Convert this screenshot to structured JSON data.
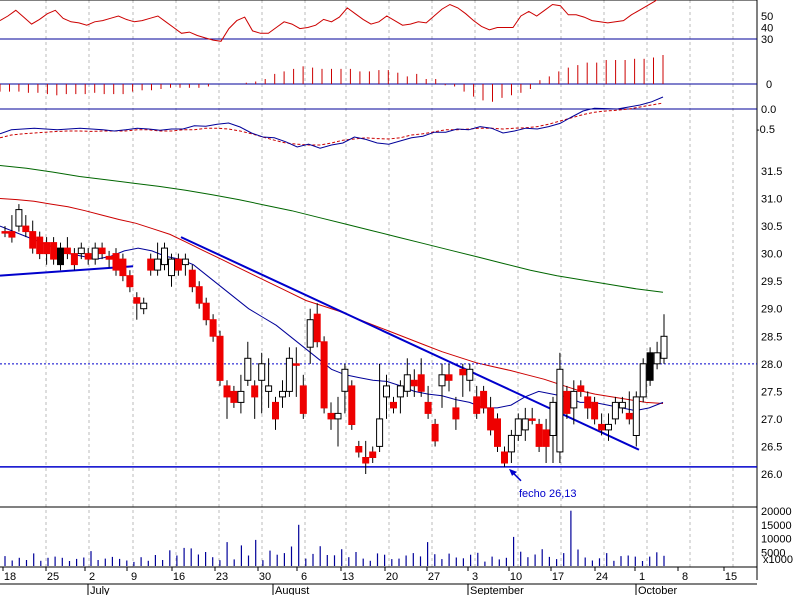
{
  "chart_data": [
    {
      "type": "line",
      "panel": "oscillator",
      "series": [
        {
          "values": [
            46,
            50,
            55,
            49,
            43,
            47,
            52,
            55,
            48,
            45,
            44,
            42,
            45,
            46,
            48,
            50,
            47,
            45,
            46,
            48,
            50,
            45,
            40,
            35,
            36,
            33,
            31,
            29,
            28,
            39,
            46,
            49,
            37,
            35,
            35,
            40,
            45,
            43,
            39,
            40,
            42,
            47,
            45,
            49,
            57,
            52,
            47,
            43,
            45,
            50,
            46,
            42,
            43,
            45,
            44,
            50,
            56,
            60,
            57,
            52,
            46,
            41,
            38,
            40,
            40,
            40,
            50,
            54,
            50,
            55,
            60,
            59,
            51,
            51,
            49,
            46,
            45,
            44,
            45,
            46,
            51,
            55,
            59,
            63,
            69
          ]
        }
      ],
      "reference_lines": [
        30
      ],
      "ytick_labels": [
        "50",
        "40",
        "30"
      ],
      "colors": {
        "line": "#cc0000",
        "reference": "#000099"
      }
    },
    {
      "type": "bar",
      "panel": "histogram",
      "values": [
        -6,
        -6,
        -6,
        -7,
        -7,
        -8,
        -9,
        -8,
        -8,
        -8,
        -7,
        -8,
        -8,
        -8,
        -6,
        -5,
        -5,
        -4,
        -3,
        -3,
        -3,
        -3,
        -2,
        0,
        0,
        0,
        1,
        2,
        4,
        8,
        10,
        12,
        14,
        13,
        12,
        12,
        12,
        12,
        10,
        10,
        11,
        11,
        9,
        6,
        8,
        4,
        4,
        -1,
        -2,
        -6,
        -10,
        -13,
        -14,
        -11,
        -9,
        -7,
        -4,
        3,
        6,
        10,
        13,
        15,
        17,
        17,
        19,
        19,
        19,
        20,
        20,
        21,
        23
      ],
      "reference_lines": [
        0
      ],
      "ytick_labels": [
        "0"
      ],
      "colors": {
        "bar": "#cc0000",
        "reference": "#000099"
      }
    },
    {
      "type": "line",
      "panel": "macd",
      "series": [
        {
          "values": [
            -0.62,
            -0.52,
            -0.5,
            -0.48,
            -0.5,
            -0.52,
            -0.5,
            -0.48,
            -0.5,
            -0.52,
            -0.55,
            -0.52,
            -0.48,
            -0.5,
            -0.53,
            -0.5,
            -0.5,
            -0.42,
            -0.43,
            -0.38,
            -0.35,
            -0.45,
            -0.6,
            -0.7,
            -0.72,
            -0.82,
            -0.95,
            -0.88,
            -0.98,
            -0.9,
            -0.85,
            -0.7,
            -0.76,
            -0.85,
            -0.88,
            -0.8,
            -0.72,
            -0.68,
            -0.58,
            -0.58,
            -0.5,
            -0.52,
            -0.44,
            -0.48,
            -0.6,
            -0.55,
            -0.48,
            -0.5,
            -0.44,
            -0.36,
            -0.2,
            -0.05,
            0.02,
            0.01,
            0.0,
            0.05,
            0.1,
            0.18,
            0.3
          ]
        },
        {
          "values": [
            -0.72,
            -0.65,
            -0.62,
            -0.6,
            -0.58,
            -0.56,
            -0.55,
            -0.55,
            -0.56,
            -0.55,
            -0.55,
            -0.55,
            -0.52,
            -0.52,
            -0.55,
            -0.55,
            -0.52,
            -0.52,
            -0.48,
            -0.48,
            -0.5,
            -0.55,
            -0.62,
            -0.7,
            -0.78,
            -0.85,
            -0.88,
            -0.9,
            -0.9,
            -0.85,
            -0.78,
            -0.75,
            -0.72,
            -0.74,
            -0.75,
            -0.72,
            -0.65,
            -0.62,
            -0.57,
            -0.52,
            -0.52,
            -0.5,
            -0.48,
            -0.48,
            -0.5,
            -0.48,
            -0.47,
            -0.44,
            -0.38,
            -0.3,
            -0.22,
            -0.14,
            -0.08,
            -0.05,
            -0.03,
            0.0,
            0.05,
            0.1,
            0.15
          ]
        }
      ],
      "reference_lines": [
        0.0
      ],
      "ytick_labels": [
        "0.0",
        "-0.5"
      ],
      "colors": {
        "fast": "#000099",
        "slow": "#cc0000",
        "reference": "#000099"
      }
    },
    {
      "type": "candlestick",
      "panel": "price",
      "ylim": [
        25.75,
        31.75
      ],
      "ytick_labels": [
        "31.5",
        "31.0",
        "30.5",
        "30.0",
        "29.5",
        "29.0",
        "28.5",
        "28.0",
        "27.5",
        "27.0",
        "26.5",
        "26.0"
      ],
      "candles": [
        [
          30.4,
          30.5,
          30.3,
          30.4
        ],
        [
          30.4,
          30.7,
          30.2,
          30.3
        ],
        [
          30.5,
          30.9,
          30.4,
          30.8
        ],
        [
          30.5,
          30.7,
          30.3,
          30.4
        ],
        [
          30.4,
          30.6,
          30.0,
          30.1
        ],
        [
          30.3,
          30.4,
          29.9,
          30.0
        ],
        [
          30.2,
          30.3,
          29.8,
          30.0
        ],
        [
          30.2,
          30.3,
          29.8,
          29.9
        ],
        [
          29.8,
          30.2,
          29.7,
          30.1
        ],
        [
          30.1,
          30.3,
          29.9,
          30.0
        ],
        [
          30.0,
          30.1,
          29.7,
          29.8
        ],
        [
          30.0,
          30.2,
          29.9,
          30.1
        ],
        [
          30.0,
          30.1,
          29.8,
          29.9
        ],
        [
          29.9,
          30.2,
          29.8,
          30.1
        ],
        [
          30.1,
          30.2,
          29.9,
          30.0
        ],
        [
          29.95,
          30.05,
          29.75,
          29.9
        ],
        [
          30.0,
          30.1,
          29.6,
          29.7
        ],
        [
          29.9,
          30.0,
          29.5,
          29.6
        ],
        [
          29.6,
          29.7,
          29.3,
          29.4
        ],
        [
          29.2,
          29.3,
          28.8,
          29.1
        ],
        [
          29.0,
          29.2,
          28.9,
          29.1
        ],
        [
          29.9,
          30.0,
          29.6,
          29.7
        ],
        [
          29.7,
          30.2,
          29.6,
          29.9
        ],
        [
          29.8,
          30.2,
          29.7,
          30.1
        ],
        [
          29.6,
          30.0,
          29.4,
          29.9
        ],
        [
          29.9,
          30.0,
          29.6,
          29.7
        ],
        [
          29.8,
          30.0,
          29.6,
          29.9
        ],
        [
          29.7,
          29.8,
          29.3,
          29.4
        ],
        [
          29.4,
          29.5,
          29.0,
          29.1
        ],
        [
          29.1,
          29.2,
          28.7,
          28.8
        ],
        [
          28.8,
          28.9,
          28.4,
          28.5
        ],
        [
          28.5,
          28.6,
          27.6,
          27.7
        ],
        [
          27.6,
          27.7,
          27.0,
          27.4
        ],
        [
          27.5,
          27.6,
          27.2,
          27.3
        ],
        [
          27.3,
          27.8,
          27.1,
          27.5
        ],
        [
          27.7,
          28.4,
          27.6,
          28.1
        ],
        [
          27.6,
          27.7,
          27.0,
          27.4
        ],
        [
          27.7,
          28.2,
          27.1,
          28.0
        ],
        [
          27.5,
          28.1,
          27.2,
          27.6
        ],
        [
          27.3,
          27.4,
          26.8,
          27.0
        ],
        [
          27.4,
          27.7,
          27.2,
          27.5
        ],
        [
          27.5,
          28.3,
          27.4,
          28.1
        ],
        [
          28.0,
          28.3,
          27.4,
          28.0
        ],
        [
          27.6,
          27.8,
          27.0,
          27.1
        ],
        [
          28.3,
          29.0,
          28.0,
          28.8
        ],
        [
          28.9,
          29.1,
          28.3,
          28.4
        ],
        [
          28.4,
          28.5,
          27.1,
          27.2
        ],
        [
          27.1,
          27.3,
          26.8,
          27.0
        ],
        [
          27.0,
          27.4,
          26.5,
          27.1
        ],
        [
          27.5,
          28.0,
          27.1,
          27.9
        ],
        [
          27.6,
          27.7,
          26.8,
          26.9
        ],
        [
          26.5,
          26.6,
          26.3,
          26.4
        ],
        [
          26.3,
          26.6,
          26.0,
          26.2
        ],
        [
          26.4,
          26.5,
          26.2,
          26.3
        ],
        [
          26.5,
          28.0,
          26.4,
          27.0
        ],
        [
          27.4,
          27.8,
          27.0,
          27.6
        ],
        [
          27.3,
          27.4,
          27.1,
          27.2
        ],
        [
          27.4,
          27.7,
          27.1,
          27.6
        ],
        [
          27.5,
          28.1,
          27.4,
          27.8
        ],
        [
          27.7,
          27.9,
          27.4,
          27.6
        ],
        [
          27.8,
          28.1,
          27.4,
          27.5
        ],
        [
          27.3,
          27.6,
          27.0,
          27.1
        ],
        [
          26.9,
          27.0,
          26.5,
          26.6
        ],
        [
          27.6,
          28.0,
          27.2,
          27.8
        ],
        [
          27.8,
          28.0,
          27.5,
          27.7
        ],
        [
          27.2,
          27.4,
          26.8,
          27.0
        ],
        [
          27.9,
          28.0,
          27.4,
          27.8
        ],
        [
          27.7,
          28.0,
          27.5,
          27.9
        ],
        [
          27.4,
          27.6,
          27.0,
          27.1
        ],
        [
          27.5,
          27.6,
          27.1,
          27.2
        ],
        [
          27.2,
          27.4,
          26.7,
          26.8
        ],
        [
          27.0,
          27.1,
          26.4,
          26.5
        ],
        [
          26.4,
          26.5,
          26.13,
          26.2
        ],
        [
          26.4,
          26.8,
          26.2,
          26.7
        ],
        [
          26.7,
          27.1,
          26.6,
          27.0
        ],
        [
          26.8,
          27.2,
          26.6,
          27.0
        ],
        [
          27.0,
          27.2,
          26.9,
          27.0
        ],
        [
          26.9,
          27.0,
          26.4,
          26.5
        ],
        [
          26.8,
          27.0,
          26.2,
          26.5
        ],
        [
          26.7,
          27.4,
          26.2,
          27.3
        ],
        [
          26.4,
          28.2,
          26.2,
          27.9
        ],
        [
          27.5,
          27.6,
          27.0,
          27.1
        ],
        [
          27.2,
          27.7,
          26.9,
          27.5
        ],
        [
          27.6,
          27.7,
          27.4,
          27.5
        ],
        [
          27.4,
          27.5,
          27.0,
          27.2
        ],
        [
          27.3,
          27.4,
          26.9,
          27.0
        ],
        [
          26.9,
          27.1,
          26.7,
          26.8
        ],
        [
          26.8,
          27.1,
          26.6,
          26.9
        ],
        [
          27.0,
          27.4,
          26.9,
          27.3
        ],
        [
          27.2,
          27.4,
          27.1,
          27.3
        ],
        [
          27.1,
          27.5,
          26.9,
          27.0
        ],
        [
          26.7,
          27.5,
          26.5,
          27.4
        ],
        [
          27.4,
          28.1,
          27.3,
          28.0
        ],
        [
          27.7,
          28.3,
          27.6,
          28.2
        ],
        [
          28.0,
          28.4,
          27.9,
          28.2
        ],
        [
          28.1,
          28.9,
          28.0,
          28.5
        ]
      ],
      "overlays": {
        "ma_short": [
          30.5,
          30.4,
          30.3,
          30.2,
          30.1,
          30.0,
          29.95,
          29.9,
          29.95,
          30.05,
          30.1,
          30.05,
          29.95,
          29.9,
          29.8,
          29.6,
          29.4,
          29.2,
          29.0,
          28.85,
          28.7,
          28.5,
          28.3,
          28.1,
          27.9,
          27.8,
          27.75,
          27.7,
          27.68,
          27.6,
          27.5,
          27.45,
          27.42,
          27.35,
          27.3,
          27.2,
          27.2,
          27.25,
          27.4,
          27.5,
          27.45,
          27.4,
          27.3,
          27.3,
          27.25,
          27.2,
          27.15,
          27.2,
          27.3
        ],
        "ma_medium": [
          31.0,
          30.98,
          30.95,
          30.9,
          30.85,
          30.78,
          30.7,
          30.62,
          30.55,
          30.45,
          30.35,
          30.2,
          30.05,
          29.9,
          29.75,
          29.6,
          29.45,
          29.3,
          29.15,
          29.05,
          28.95,
          28.82,
          28.7,
          28.58,
          28.46,
          28.34,
          28.22,
          28.12,
          28.02,
          27.95,
          27.88,
          27.8,
          27.72,
          27.62,
          27.52,
          27.45,
          27.4,
          27.35,
          27.3,
          27.28
        ],
        "ma_long": [
          31.6,
          31.55,
          31.48,
          31.4,
          31.34,
          31.28,
          31.22,
          31.15,
          31.07,
          30.98,
          30.88,
          30.78,
          30.66,
          30.54,
          30.42,
          30.3,
          30.18,
          30.06,
          29.94,
          29.82,
          29.7,
          29.6,
          29.52,
          29.44,
          29.36,
          29.3
        ]
      },
      "reference_lines": [
        26.13,
        28.0
      ],
      "annotations": [
        {
          "text": "fecho 26,13",
          "value": 26.13
        }
      ],
      "colors": {
        "up": "#ffffff",
        "down": "#ee0000",
        "neutral": "#000000",
        "ma_short": "#000099",
        "ma_medium": "#cc0000",
        "ma_long": "#006600",
        "trend": "#0000cc"
      }
    },
    {
      "type": "bar",
      "panel": "volume",
      "values": [
        3600,
        2000,
        3000,
        2200,
        4600,
        1900,
        3000,
        3400,
        3000,
        1800,
        2600,
        3100,
        5400,
        2200,
        2700,
        3300,
        2600,
        2000,
        1500,
        3200,
        1900,
        4000,
        2200,
        5700,
        3800,
        6600,
        6400,
        4200,
        5100,
        3200,
        2100,
        8700,
        2400,
        7500,
        3800,
        9500,
        2100,
        5600,
        4100,
        4700,
        7100,
        15000,
        2700,
        4400,
        7200,
        4000,
        3900,
        6100,
        3200,
        5100,
        2700,
        1900,
        4600,
        4100,
        2500,
        2700,
        3800,
        4700,
        3500,
        8700,
        4300,
        2500,
        4500,
        3100,
        2800,
        4100,
        4800,
        1600,
        3400,
        2400,
        3000,
        10600,
        5200,
        3200,
        4200,
        6100,
        3300,
        2500,
        4700,
        20100,
        6000,
        3100,
        2000,
        2800,
        4700,
        1900,
        3600,
        3800,
        3400,
        1800,
        3400,
        5000,
        3700
      ],
      "ytick_labels": [
        "20000",
        "15000",
        "10000",
        "5000"
      ],
      "unit_label": "x1000",
      "colors": {
        "bar": "#000099"
      }
    }
  ],
  "x_axis": {
    "day_labels": [
      "18",
      "25",
      "2",
      "9",
      "16",
      "23",
      "30",
      "6",
      "13",
      "20",
      "27",
      "3",
      "10",
      "17",
      "24",
      "1",
      "8",
      "15"
    ],
    "month_labels": [
      "July",
      "August",
      "September",
      "October"
    ]
  }
}
